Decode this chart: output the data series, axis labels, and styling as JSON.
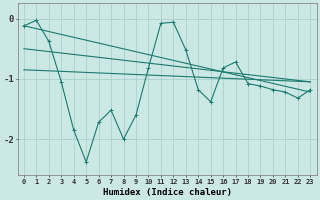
{
  "xlabel": "Humidex (Indice chaleur)",
  "ylabel": "",
  "bg_color": "#cce8e4",
  "grid_color": "#aacfcb",
  "line_color": "#1a7a6e",
  "xlim": [
    -0.5,
    23.5
  ],
  "ylim": [
    -2.6,
    0.25
  ],
  "yticks": [
    0,
    -1,
    -2
  ],
  "xticks": [
    0,
    1,
    2,
    3,
    4,
    5,
    6,
    7,
    8,
    9,
    10,
    11,
    12,
    13,
    14,
    15,
    16,
    17,
    18,
    19,
    20,
    21,
    22,
    23
  ],
  "series1_x": [
    0,
    1,
    2,
    3,
    4,
    5,
    6,
    7,
    8,
    9,
    10,
    11,
    12,
    13,
    14,
    15,
    16,
    17,
    18,
    19,
    20,
    21,
    22,
    23
  ],
  "series1_y": [
    -0.12,
    -0.03,
    -0.38,
    -1.05,
    -1.85,
    -2.38,
    -1.72,
    -1.52,
    -2.0,
    -1.6,
    -0.82,
    -0.08,
    -0.06,
    -0.52,
    -1.18,
    -1.38,
    -0.82,
    -0.72,
    -1.08,
    -1.12,
    -1.18,
    -1.22,
    -1.32,
    -1.18
  ],
  "series2_x": [
    0,
    23
  ],
  "series2_y": [
    -0.12,
    -1.22
  ],
  "series3_x": [
    0,
    23
  ],
  "series3_y": [
    -0.5,
    -1.05
  ],
  "series4_x": [
    0,
    23
  ],
  "series4_y": [
    -0.85,
    -1.05
  ],
  "tick_fontsize": 5,
  "xlabel_fontsize": 6.5
}
